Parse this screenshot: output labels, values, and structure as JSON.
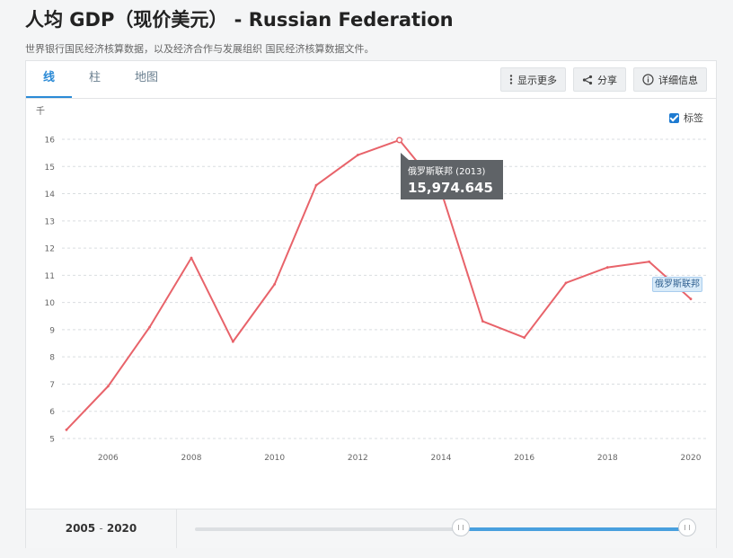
{
  "header": {
    "title": "人均 GDP（现价美元） - Russian Federation",
    "subtitle": "世界银行国民经济核算数据，以及经济合作与发展组织 国民经济核算数据文件。"
  },
  "tabs": [
    {
      "label": "线",
      "active": true
    },
    {
      "label": "柱",
      "active": false
    },
    {
      "label": "地图",
      "active": false
    }
  ],
  "toolbar": {
    "more_label": "显示更多",
    "share_label": "分享",
    "details_label": "详细信息"
  },
  "legend_toggle": {
    "label": "标签",
    "checked": true
  },
  "tooltip": {
    "series": "俄罗斯联邦 (2013)",
    "value": "15,974.645"
  },
  "series_label": "俄罗斯联邦",
  "range": {
    "start": "2005",
    "separator": "-",
    "end": "2020"
  },
  "colors": {
    "line": "#e8636a",
    "accent": "#2b8ad6"
  },
  "chart_data": {
    "type": "line",
    "title": "",
    "xlabel": "",
    "ylabel": "千",
    "xlim": [
      2005,
      2020
    ],
    "ylim": [
      5,
      16
    ],
    "x_ticks": [
      2006,
      2008,
      2010,
      2012,
      2014,
      2016,
      2018,
      2020
    ],
    "y_ticks": [
      5,
      6,
      7,
      8,
      9,
      10,
      11,
      12,
      13,
      14,
      15,
      16
    ],
    "grid": true,
    "series": [
      {
        "name": "俄罗斯联邦",
        "x": [
          2005,
          2006,
          2007,
          2008,
          2009,
          2010,
          2011,
          2012,
          2013,
          2014,
          2015,
          2016,
          2017,
          2018,
          2019,
          2020
        ],
        "values": [
          5.32,
          6.92,
          9.1,
          11.64,
          8.56,
          10.67,
          14.31,
          15.42,
          15.97,
          14.1,
          9.31,
          8.71,
          10.72,
          11.29,
          11.5,
          10.13
        ]
      }
    ]
  }
}
